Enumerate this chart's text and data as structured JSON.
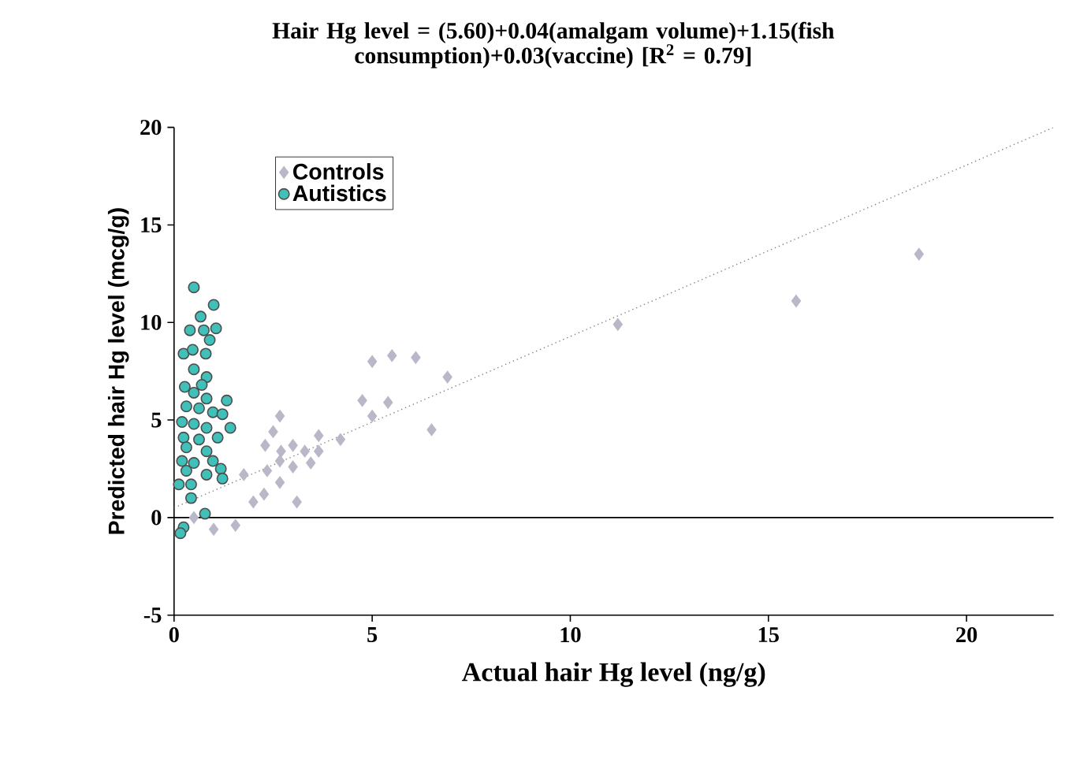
{
  "chart_data": {
    "type": "scatter",
    "title": "Hair Hg level = (5.60)+0.04(amalgam volume)+1.15(fish consumption)+0.03(vaccine)     [R$^{2}$ =  0.79]",
    "xlabel": "Actual hair Hg level (ng/g)",
    "ylabel": "Predicted hair Hg level (mcg/g)",
    "xlim": [
      0,
      22.2
    ],
    "ylim": [
      -5,
      20
    ],
    "xticks": [
      0,
      5,
      10,
      15,
      20
    ],
    "yticks": [
      -5,
      0,
      5,
      10,
      15,
      20
    ],
    "legend": "top left",
    "grid": false,
    "ref_lines": [
      {
        "axis": "y",
        "value": 0,
        "color": "#000000",
        "line_style": "solid"
      }
    ],
    "series": [
      {
        "name": "Controls",
        "marker": "diamond",
        "color": "#b8b8c8",
        "x": [
          11.2,
          15.7,
          18.8,
          5.0,
          5.5,
          6.1,
          6.9,
          4.75,
          5.4,
          5.0,
          6.5,
          3.65,
          4.2,
          3.65,
          2.67,
          2.5,
          2.3,
          2.7,
          3.0,
          3.3,
          3.45,
          3.0,
          2.67,
          2.35,
          1.76,
          2.27,
          2.0,
          3.1,
          2.67,
          1.0,
          1.55,
          0.5
        ],
        "values": [
          9.9,
          11.1,
          13.5,
          8.0,
          8.3,
          8.2,
          7.2,
          6.0,
          5.9,
          5.2,
          4.5,
          4.2,
          4.0,
          3.4,
          5.2,
          4.4,
          3.7,
          3.4,
          3.7,
          3.4,
          2.8,
          2.6,
          2.9,
          2.4,
          2.2,
          1.2,
          0.8,
          0.8,
          1.8,
          -0.6,
          -0.4,
          0.0
        ]
      },
      {
        "name": "Autistics",
        "marker": "circle",
        "color": "#40c0b8",
        "x": [
          0.5,
          1.0,
          0.67,
          0.4,
          0.75,
          1.06,
          0.9,
          0.24,
          0.47,
          0.8,
          0.5,
          0.82,
          0.7,
          0.27,
          0.5,
          0.82,
          1.33,
          0.31,
          0.63,
          0.98,
          1.22,
          0.2,
          0.5,
          0.82,
          1.42,
          0.24,
          0.63,
          1.1,
          0.82,
          0.31,
          0.2,
          0.5,
          0.98,
          1.18,
          0.31,
          0.82,
          1.22,
          0.12,
          0.43,
          0.43,
          0.78,
          0.24,
          0.16
        ],
        "values": [
          11.8,
          10.9,
          10.3,
          9.6,
          9.6,
          9.7,
          9.1,
          8.4,
          8.6,
          8.4,
          7.6,
          7.2,
          6.8,
          6.7,
          6.4,
          6.1,
          6.0,
          5.7,
          5.6,
          5.4,
          5.3,
          4.9,
          4.8,
          4.6,
          4.6,
          4.1,
          4.0,
          4.1,
          3.4,
          3.6,
          2.9,
          2.8,
          2.9,
          2.5,
          2.4,
          2.2,
          2.0,
          1.7,
          1.7,
          1.0,
          0.2,
          -0.5,
          -0.8
        ]
      },
      {
        "type": "line",
        "line_style": "dotted",
        "marker": "none",
        "color": "#808080",
        "x": [
          0,
          22.2
        ],
        "values": [
          0.5,
          20
        ]
      }
    ]
  }
}
